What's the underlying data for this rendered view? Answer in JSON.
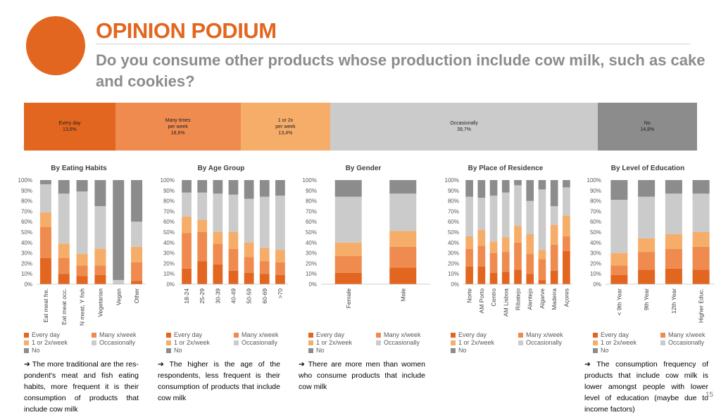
{
  "header": {
    "title": "OPINION PODIUM",
    "subtitle": "Do you consume other products whose production include cow milk, such as cake and cookies?"
  },
  "colors": {
    "every_day": "#e2661f",
    "many_week": "#ef8b4f",
    "one_two_week": "#f6ad6a",
    "occasionally": "#cbcbcb",
    "no": "#8c8c8c"
  },
  "overall": [
    {
      "lines": [
        "Every day",
        "13,6%"
      ],
      "value": 13.6,
      "color": "#e2661f"
    },
    {
      "lines": [
        "Many times",
        "per week",
        "18,6%"
      ],
      "value": 18.6,
      "color": "#ef8b4f"
    },
    {
      "lines": [
        "1 or 2x",
        "per week",
        "13,4%"
      ],
      "value": 13.4,
      "color": "#f6ad6a"
    },
    {
      "lines": [
        "Occasionally",
        "39,7%"
      ],
      "value": 39.7,
      "color": "#cbcbcb"
    },
    {
      "lines": [
        "No",
        "14,8%"
      ],
      "value": 14.8,
      "color": "#8c8c8c"
    }
  ],
  "legend": [
    "Every day",
    "Many x/week",
    "1 or 2x/week",
    "Occasionally",
    "No"
  ],
  "chart_data": [
    {
      "type": "bar",
      "stacked": true,
      "title": "By Eating Habits",
      "categories": [
        "Eat meat fre.",
        "Eat meat occ.",
        "N meat, Y fish",
        "Vegetarian",
        "Vegan",
        "Other"
      ],
      "ylim": [
        0,
        100
      ],
      "yticks": [
        "0%",
        "10%",
        "20%",
        "30%",
        "40%",
        "50%",
        "60%",
        "70%",
        "80%",
        "90%",
        "100%"
      ],
      "series": [
        {
          "name": "Every day",
          "values": [
            25,
            10,
            8,
            9,
            0,
            3
          ]
        },
        {
          "name": "Many x/week",
          "values": [
            30,
            15,
            10,
            9,
            0,
            18
          ]
        },
        {
          "name": "1 or 2x/week",
          "values": [
            14,
            14,
            11,
            16,
            0,
            15
          ]
        },
        {
          "name": "Occasionally",
          "values": [
            27,
            48,
            60,
            41,
            4,
            24
          ]
        },
        {
          "name": "No",
          "values": [
            4,
            13,
            11,
            25,
            96,
            40
          ]
        }
      ]
    },
    {
      "type": "bar",
      "stacked": true,
      "title": "By Age Group",
      "categories": [
        "18-24",
        "25-29",
        "30-39",
        "40-49",
        "50-59",
        "60-69",
        ">70"
      ],
      "ylim": [
        0,
        100
      ],
      "yticks": [
        "0%",
        "10%",
        "20%",
        "30%",
        "40%",
        "50%",
        "60%",
        "70%",
        "80%",
        "90%",
        "100%"
      ],
      "series": [
        {
          "name": "Every day",
          "values": [
            15,
            22,
            19,
            13,
            11,
            10,
            9
          ]
        },
        {
          "name": "Many x/week",
          "values": [
            34,
            28,
            20,
            21,
            15,
            12,
            12
          ]
        },
        {
          "name": "1 or 2x/week",
          "values": [
            16,
            12,
            11,
            16,
            14,
            13,
            12
          ]
        },
        {
          "name": "Occasionally",
          "values": [
            23,
            26,
            37,
            36,
            42,
            49,
            52
          ]
        },
        {
          "name": "No",
          "values": [
            12,
            12,
            13,
            14,
            18,
            16,
            15
          ]
        }
      ]
    },
    {
      "type": "bar",
      "stacked": true,
      "title": "By Gender",
      "categories": [
        "Female",
        "Male"
      ],
      "ylim": [
        0,
        100
      ],
      "yticks": [
        "0%",
        "10%",
        "20%",
        "30%",
        "40%",
        "50%",
        "60%",
        "70%",
        "80%",
        "90%",
        "100%"
      ],
      "series": [
        {
          "name": "Every day",
          "values": [
            11,
            16
          ]
        },
        {
          "name": "Many x/week",
          "values": [
            16,
            20
          ]
        },
        {
          "name": "1 or 2x/week",
          "values": [
            13,
            15
          ]
        },
        {
          "name": "Occasionally",
          "values": [
            44,
            36
          ]
        },
        {
          "name": "No",
          "values": [
            16,
            13
          ]
        }
      ]
    },
    {
      "type": "bar",
      "stacked": true,
      "title": "By Place of Residence",
      "categories": [
        "Norte",
        "AM Porto",
        "Centro",
        "AM Lisboa",
        "Ribatejo",
        "Alentejo",
        "Algarve",
        "Madeira",
        "Açores"
      ],
      "ylim": [
        0,
        100
      ],
      "yticks": [
        "0%",
        "10%",
        "20%",
        "30%",
        "40%",
        "50%",
        "60%",
        "70%",
        "80%",
        "90%",
        "100%"
      ],
      "series": [
        {
          "name": "Every day",
          "values": [
            17,
            17,
            11,
            12,
            14,
            10,
            4,
            13,
            32
          ]
        },
        {
          "name": "Many x/week",
          "values": [
            17,
            20,
            19,
            19,
            26,
            19,
            20,
            25,
            14
          ]
        },
        {
          "name": "1 or 2x/week",
          "values": [
            12,
            15,
            11,
            14,
            16,
            19,
            9,
            19,
            20
          ]
        },
        {
          "name": "Occasionally",
          "values": [
            38,
            31,
            44,
            43,
            39,
            32,
            58,
            18,
            27
          ]
        },
        {
          "name": "No",
          "values": [
            16,
            17,
            15,
            12,
            5,
            20,
            9,
            25,
            7
          ]
        }
      ]
    },
    {
      "type": "bar",
      "stacked": true,
      "title": "By Level of Education",
      "categories": [
        "< 9th Year",
        "9th Year",
        "12th Year",
        "Higher Educ."
      ],
      "ylim": [
        0,
        100
      ],
      "yticks": [
        "0%",
        "10%",
        "20%",
        "30%",
        "40%",
        "50%",
        "60%",
        "70%",
        "80%",
        "90%",
        "100%"
      ],
      "series": [
        {
          "name": "Every day",
          "values": [
            9,
            14,
            15,
            14
          ]
        },
        {
          "name": "Many x/week",
          "values": [
            9,
            17,
            19,
            22
          ]
        },
        {
          "name": "1 or 2x/week",
          "values": [
            12,
            13,
            14,
            14
          ]
        },
        {
          "name": "Occasionally",
          "values": [
            51,
            40,
            39,
            37
          ]
        },
        {
          "name": "No",
          "values": [
            19,
            16,
            13,
            13
          ]
        }
      ]
    }
  ],
  "notes": [
    "➔ The more traditional are the res-pondent's meat and fish eating habits, more frequent it is their consumption of products that include cow milk",
    "➔ The higher is the age of the respondents, less frequent is their consumption of products that include cow milk",
    "➔ There are more men than women who consume products that include cow milk",
    "",
    "➔ The consumption frequency of products that include cow milk is lower amongst people with lower level of education (maybe due to income factors)"
  ],
  "page_number": "15"
}
